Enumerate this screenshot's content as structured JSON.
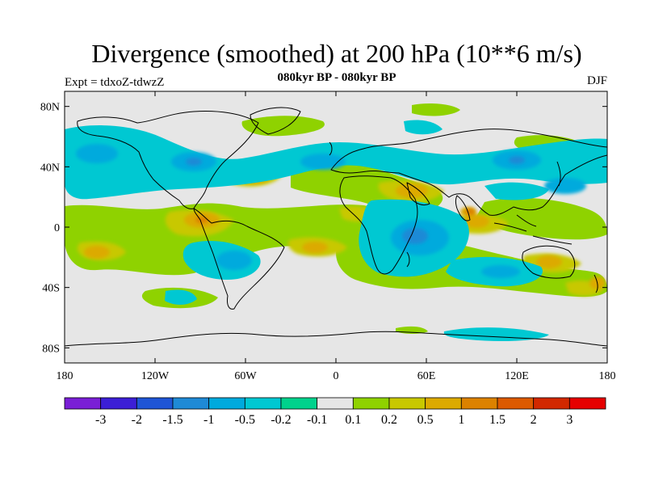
{
  "title": "Divergence (smoothed) at 200 hPa (10**6 m/s)",
  "subtitle": "080kyr BP - 080kyr BP",
  "expt_label": "Expt = tdxoZ-tdwzZ",
  "season_label": "DJF",
  "map": {
    "projection": "cylindrical-equidistant",
    "lon_range": [
      -180,
      180
    ],
    "lat_range": [
      -90,
      90
    ],
    "background_color": "#e6e6e6",
    "lat_ticks": [
      {
        "lat": 80,
        "label": "80N"
      },
      {
        "lat": 40,
        "label": "40N"
      },
      {
        "lat": 0,
        "label": "0"
      },
      {
        "lat": -40,
        "label": "40S"
      },
      {
        "lat": -80,
        "label": "80S"
      }
    ],
    "lon_ticks": [
      {
        "lon": -180,
        "label": "180"
      },
      {
        "lon": -120,
        "label": "120W"
      },
      {
        "lon": -60,
        "label": "60W"
      },
      {
        "lon": 0,
        "label": "0"
      },
      {
        "lon": 60,
        "label": "60E"
      },
      {
        "lon": 120,
        "label": "120E"
      },
      {
        "lon": 180,
        "label": "180"
      }
    ],
    "coastline_color": "#000000"
  },
  "colorbar": {
    "labels": [
      "-3",
      "-2",
      "-1.5",
      "-1",
      "-0.5",
      "-0.2",
      "-0.1",
      "0.1",
      "0.2",
      "0.5",
      "1",
      "1.5",
      "2",
      "3"
    ],
    "colors": [
      "#7a1fd6",
      "#3c1fd6",
      "#1f55d6",
      "#1f8ad6",
      "#00aadd",
      "#00c8d2",
      "#00d28c",
      "#e6e6e6",
      "#8fd200",
      "#c8c800",
      "#dcaa00",
      "#dc8200",
      "#dc5a00",
      "#d22800",
      "#e60000"
    ]
  }
}
